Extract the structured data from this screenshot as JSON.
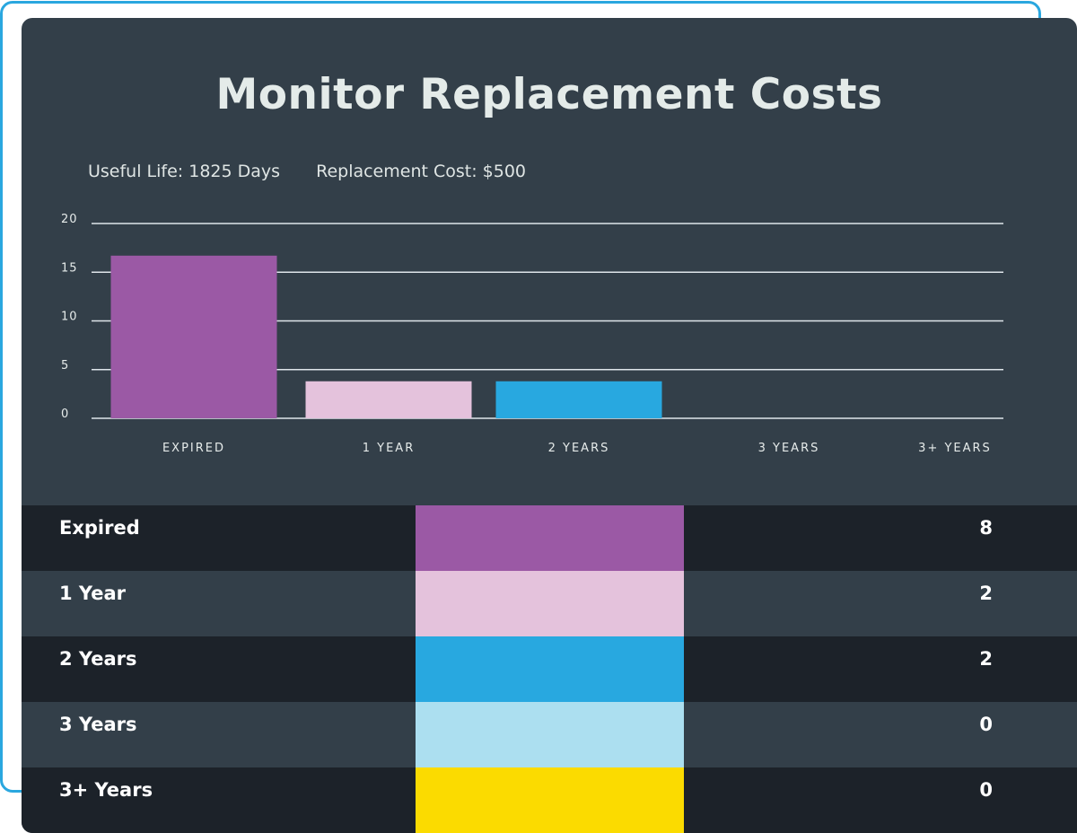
{
  "title": "Monitor Replacement Costs",
  "meta": {
    "useful_life": "Useful Life: 1825 Days",
    "replacement_cost": "Replacement Cost: $500"
  },
  "colors": {
    "expired": "#9b59a5",
    "one_year": "#e4c2dc",
    "two_years": "#28a8e0",
    "three_years": "#acdff0",
    "three_plus": "#fbdb00",
    "accent_border": "#2aa7df"
  },
  "chart_data": {
    "type": "bar",
    "categories": [
      "EXPIRED",
      "1 YEAR",
      "2 YEARS",
      "3 YEARS",
      "3+ YEARS"
    ],
    "values": [
      16.7,
      3.8,
      3.8,
      0,
      0
    ],
    "ylim": [
      0,
      20
    ],
    "yticks": [
      "0",
      "5",
      "10",
      "15",
      "20"
    ],
    "grid": true,
    "colors": [
      "#9b59a5",
      "#e4c2dc",
      "#28a8e0",
      "#acdff0",
      "#fbdb00"
    ]
  },
  "table": {
    "rows": [
      {
        "label": "Expired",
        "value": "8",
        "color": "#9b59a5"
      },
      {
        "label": "1 Year",
        "value": "2",
        "color": "#e4c2dc"
      },
      {
        "label": "2 Years",
        "value": "2",
        "color": "#28a8e0"
      },
      {
        "label": "3 Years",
        "value": "0",
        "color": "#acdff0"
      },
      {
        "label": "3+ Years",
        "value": "0",
        "color": "#fbdb00"
      }
    ]
  }
}
